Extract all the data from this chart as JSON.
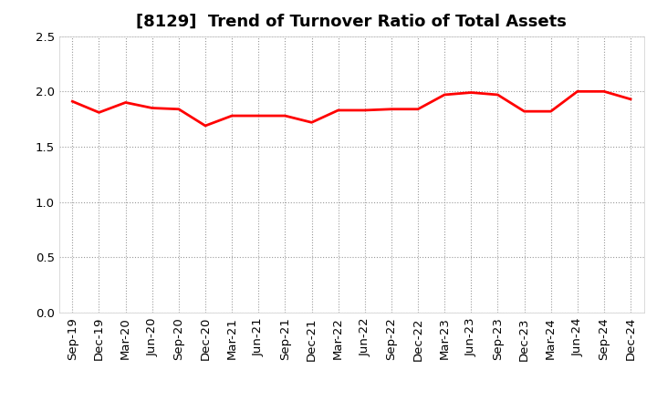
{
  "title": "[8129]  Trend of Turnover Ratio of Total Assets",
  "labels": [
    "Sep-19",
    "Dec-19",
    "Mar-20",
    "Jun-20",
    "Sep-20",
    "Dec-20",
    "Mar-21",
    "Jun-21",
    "Sep-21",
    "Dec-21",
    "Mar-22",
    "Jun-22",
    "Sep-22",
    "Dec-22",
    "Mar-23",
    "Jun-23",
    "Sep-23",
    "Dec-23",
    "Mar-24",
    "Jun-24",
    "Sep-24",
    "Dec-24"
  ],
  "values": [
    1.91,
    1.81,
    1.9,
    1.85,
    1.84,
    1.69,
    1.78,
    1.78,
    1.78,
    1.72,
    1.83,
    1.83,
    1.84,
    1.84,
    1.97,
    1.99,
    1.97,
    1.82,
    1.82,
    2.0,
    2.0,
    1.93
  ],
  "line_color": "#ff0000",
  "line_width": 2.0,
  "ylim": [
    0.0,
    2.5
  ],
  "yticks": [
    0.0,
    0.5,
    1.0,
    1.5,
    2.0,
    2.5
  ],
  "background_color": "#ffffff",
  "grid_color": "#999999",
  "title_fontsize": 13,
  "tick_fontsize": 9.5
}
